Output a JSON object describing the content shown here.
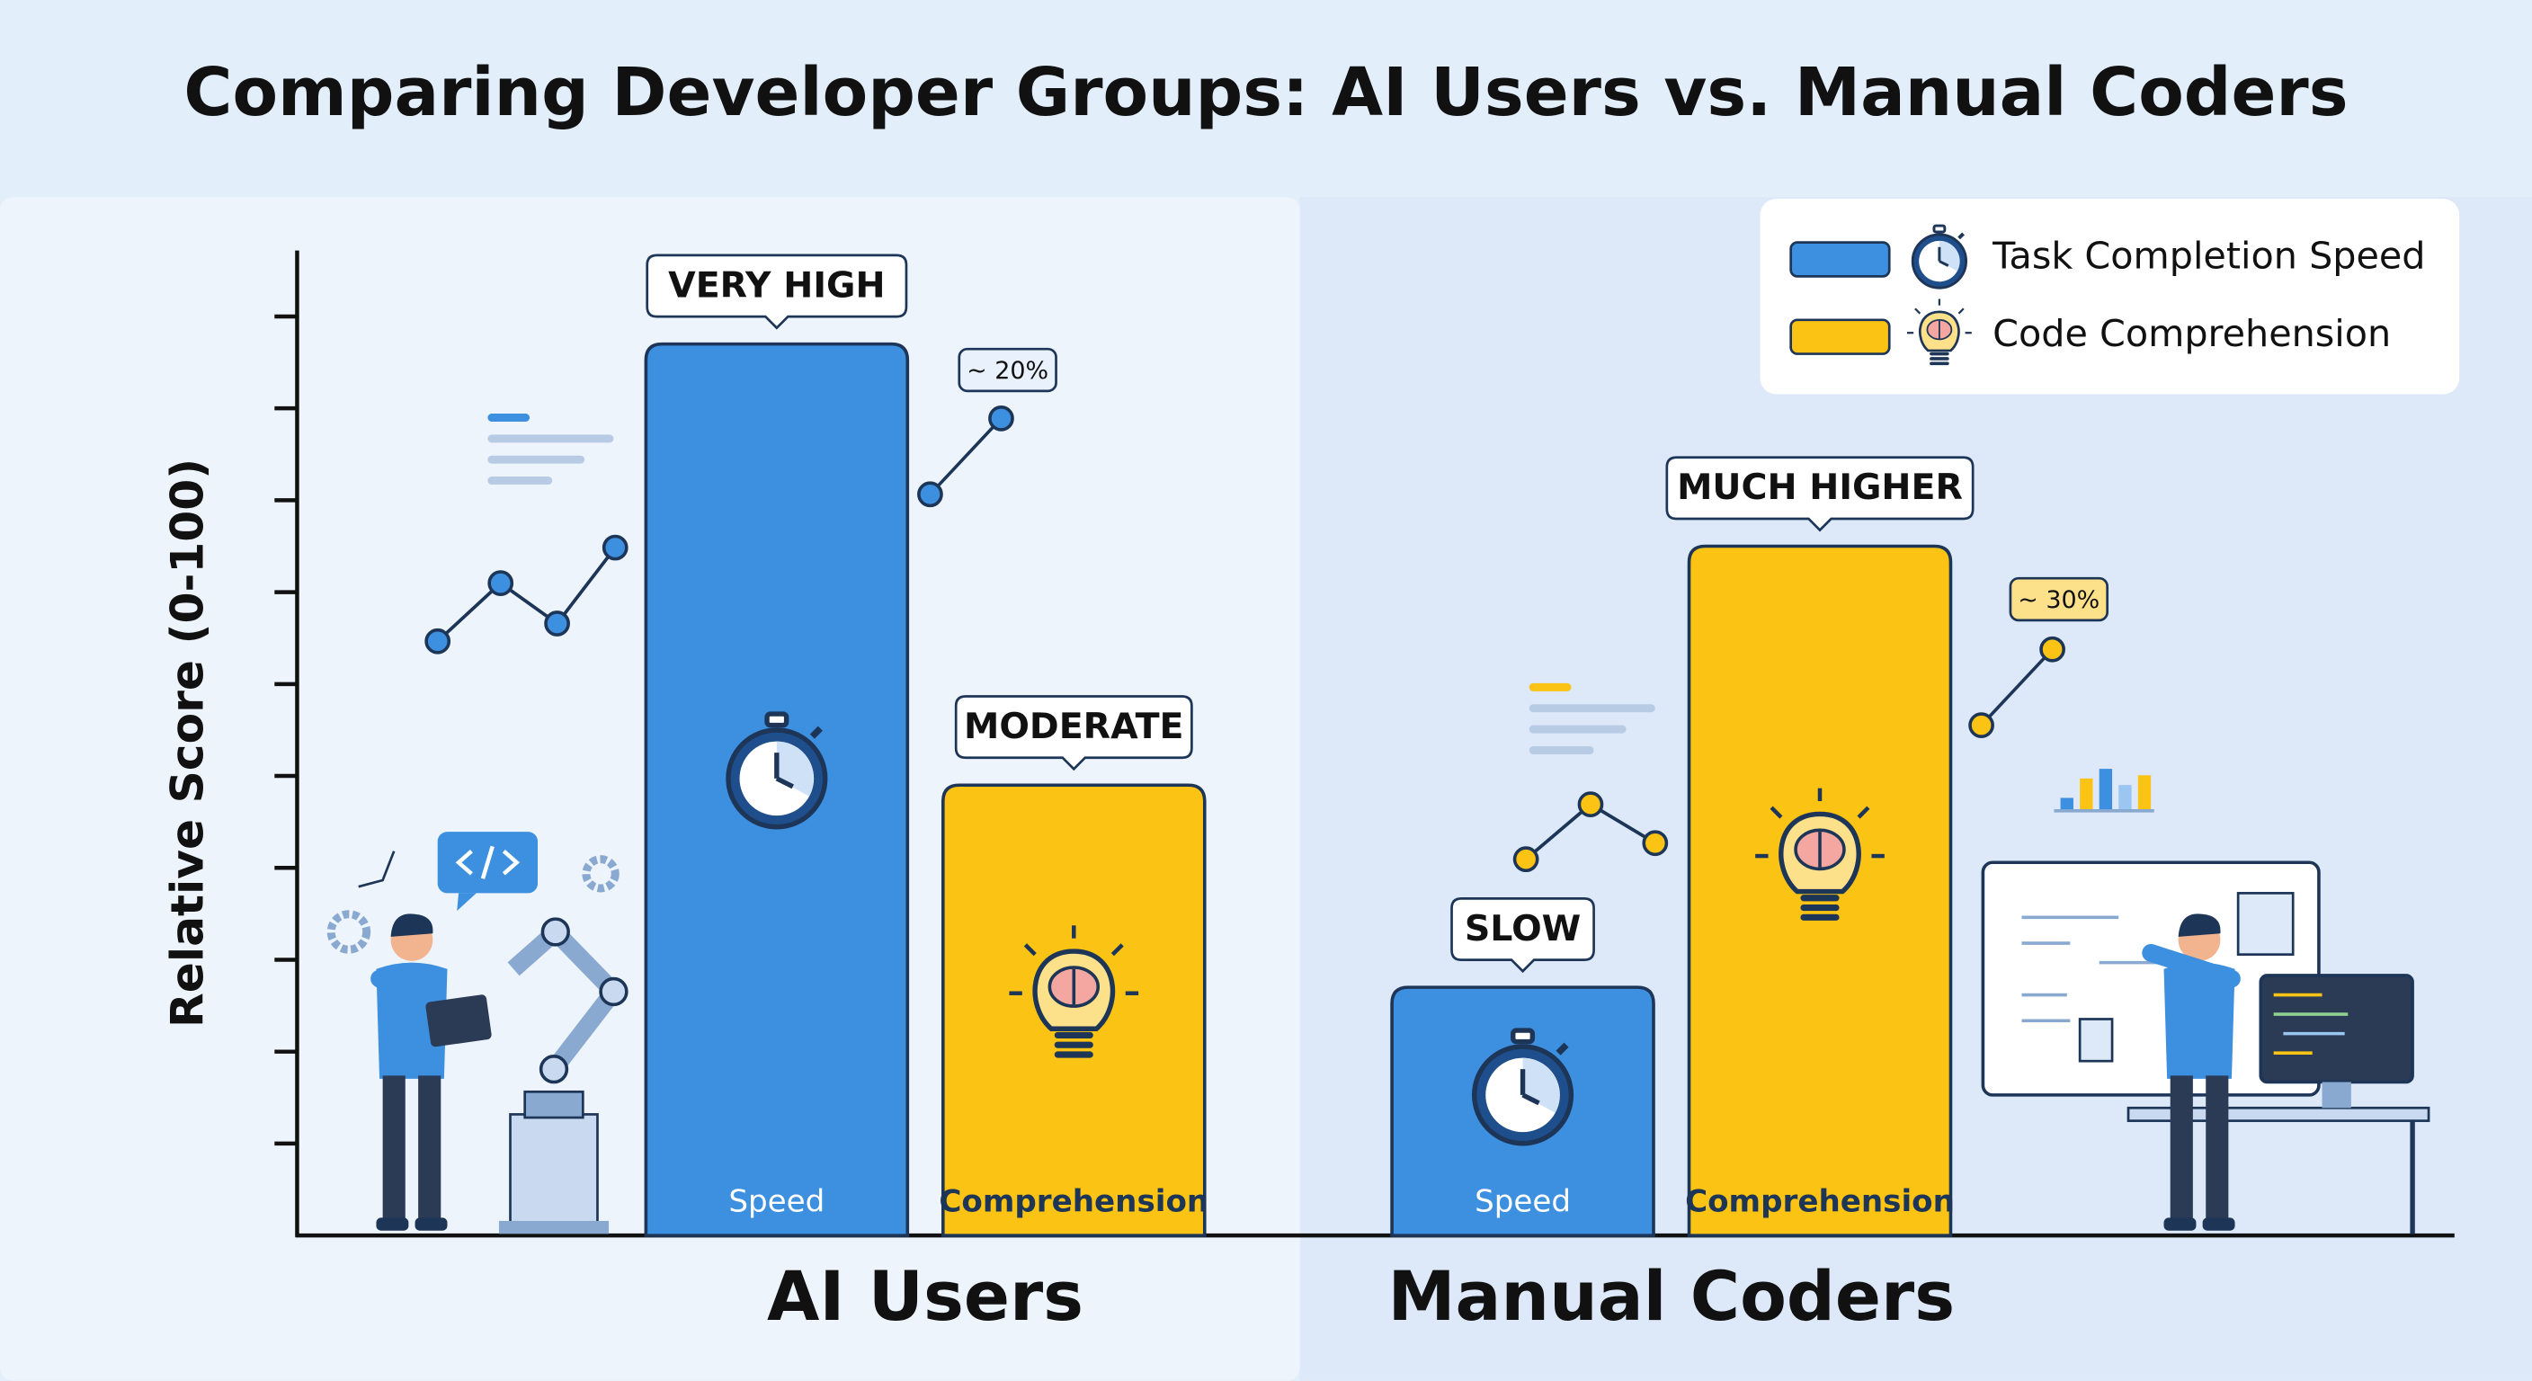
{
  "chart_data": {
    "type": "bar",
    "title": "Comparing Developer Groups: AI Users vs. Manual Coders",
    "y_label": "Relative Score (0-100)",
    "categories": [
      "AI Users",
      "Manual Coders"
    ],
    "series": [
      {
        "name": "Task Completion Speed",
        "color": "#3d8fe0",
        "values": [
          97,
          27
        ],
        "bar_labels": [
          "Speed",
          "Speed"
        ],
        "callouts": [
          "VERY HIGH",
          "SLOW"
        ]
      },
      {
        "name": "Code Comprehension",
        "color": "#fbc313",
        "values": [
          49,
          75
        ],
        "bar_labels": [
          "Comprehension",
          "Comprehension"
        ],
        "callouts": [
          "MODERATE",
          "MUCH HIGHER"
        ]
      }
    ],
    "trend_labels": [
      "~ 20%",
      "~ 30%"
    ],
    "ylim": [
      0,
      107
    ],
    "yticks": [
      10,
      20,
      30,
      40,
      50,
      60,
      70,
      80,
      90,
      100
    ],
    "legend": "top-right"
  }
}
